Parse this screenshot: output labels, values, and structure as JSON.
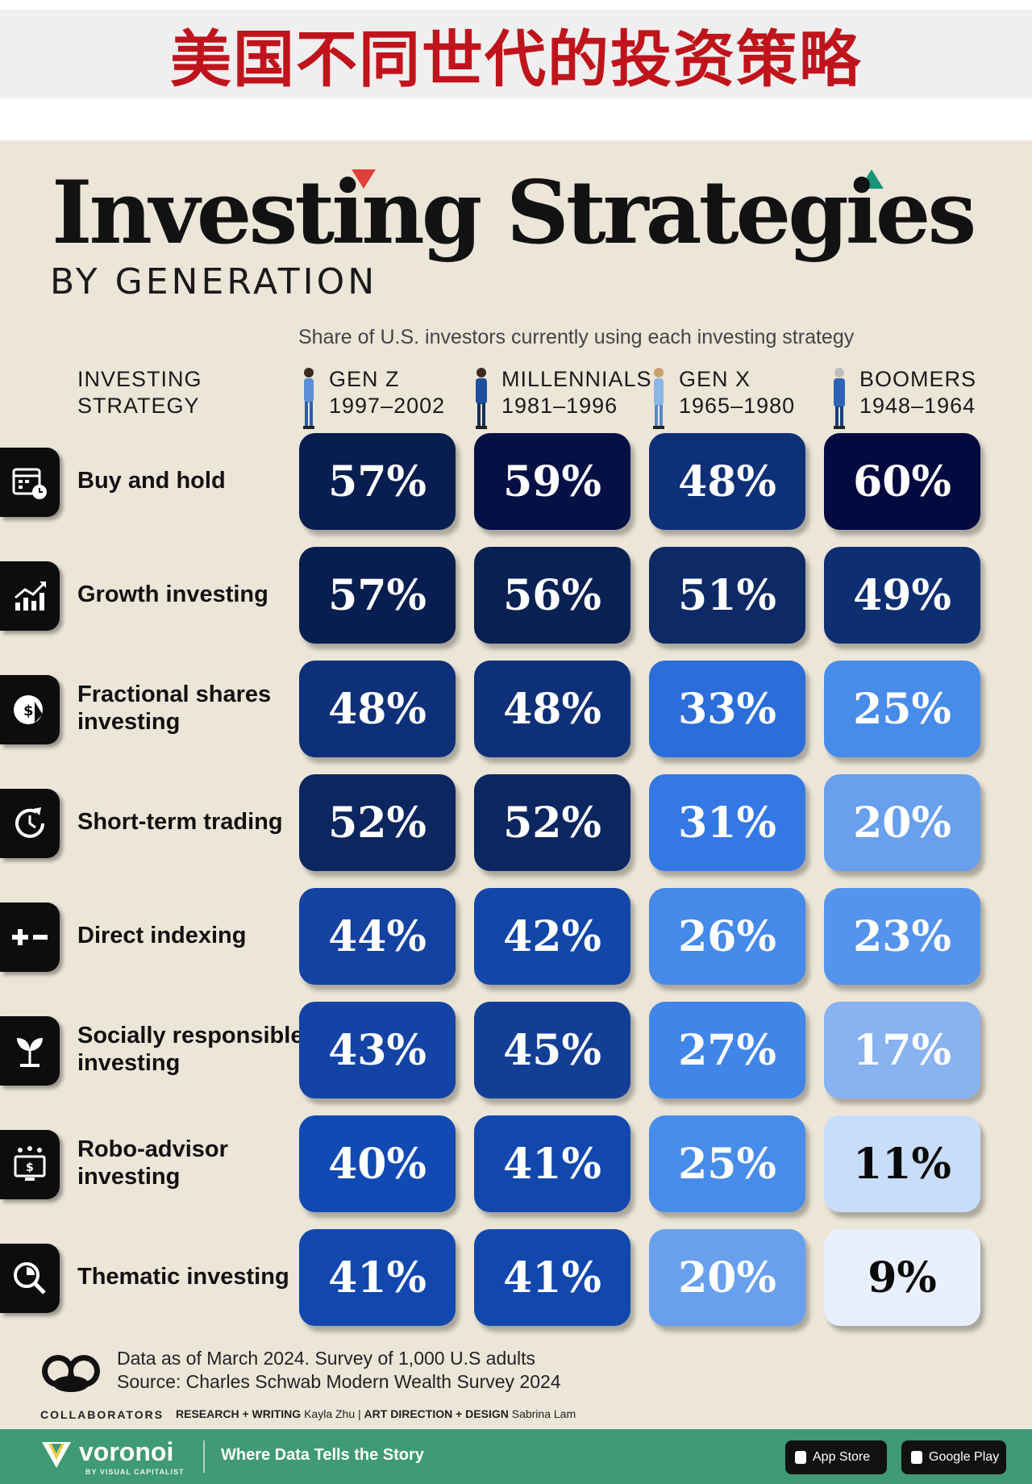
{
  "banner": {
    "text": "美国不同世代的投资策略"
  },
  "header": {
    "title": "Investing Strategies",
    "subtitle": "BY GENERATION",
    "note": "Share of U.S. investors currently using each investing strategy",
    "strategy_head_line1": "INVESTING",
    "strategy_head_line2": "STRATEGY"
  },
  "generations": [
    {
      "name": "GEN Z",
      "years": "1997–2002"
    },
    {
      "name": "MILLENNIALS",
      "years": "1981–1996"
    },
    {
      "name": "GEN X",
      "years": "1965–1980"
    },
    {
      "name": "BOOMERS",
      "years": "1948–1964"
    }
  ],
  "chart_data": {
    "type": "table",
    "title": "Investing Strategies by Generation",
    "subtitle": "Share of U.S. investors currently using each investing strategy",
    "categories": [
      "Buy and hold",
      "Growth investing",
      "Fractional shares investing",
      "Short-term trading",
      "Direct indexing",
      "Socially responsible investing",
      "Robo-advisor investing",
      "Thematic investing"
    ],
    "series": [
      {
        "name": "GEN Z",
        "values": [
          57,
          57,
          48,
          52,
          44,
          43,
          40,
          41
        ],
        "labels": [
          "57%",
          "57%",
          "48%",
          "52%",
          "44%",
          "43%",
          "40%",
          "41%"
        ]
      },
      {
        "name": "MILLENNIALS",
        "values": [
          59,
          56,
          48,
          52,
          42,
          45,
          41,
          41
        ],
        "labels": [
          "59%",
          "56%",
          "48%",
          "52%",
          "42%",
          "45%",
          "41%",
          "41%"
        ]
      },
      {
        "name": "GEN X",
        "values": [
          48,
          51,
          33,
          31,
          26,
          27,
          25,
          20
        ],
        "labels": [
          "48%",
          "51%",
          "33%",
          "31%",
          "26%",
          "27%",
          "25%",
          "20%"
        ]
      },
      {
        "name": "BOOMERS",
        "values": [
          60,
          49,
          25,
          20,
          23,
          17,
          11,
          9
        ],
        "labels": [
          "60%",
          "49%",
          "25%",
          "20%",
          "23%",
          "17%",
          "11%",
          "9%"
        ]
      }
    ],
    "unit": "%"
  },
  "rows": [
    {
      "line1": "Buy and hold",
      "line2": "",
      "icon": "calendar-clock-icon"
    },
    {
      "line1": "Growth investing",
      "line2": "",
      "icon": "growth-chart-icon"
    },
    {
      "line1": "Fractional shares",
      "line2": "investing",
      "icon": "fractional-coin-icon"
    },
    {
      "line1": "Short-term trading",
      "line2": "",
      "icon": "clock-arrow-icon"
    },
    {
      "line1": "Direct indexing",
      "line2": "",
      "icon": "plus-minus-icon"
    },
    {
      "line1": "Socially responsible",
      "line2": "investing",
      "icon": "sprout-icon"
    },
    {
      "line1": "Robo-advisor",
      "line2": "investing",
      "icon": "robo-monitor-icon"
    },
    {
      "line1": "Thematic investing",
      "line2": "",
      "icon": "magnifier-pie-icon"
    }
  ],
  "footer": {
    "note_line1": "Data as of March 2024. Survey of 1,000 U.S adults",
    "note_line2": "Source: Charles Schwab Modern Wealth Survey 2024",
    "collaborators": "COLLABORATORS",
    "research_label": "RESEARCH + WRITING",
    "research_name": "Kayla Zhu",
    "separator": "|",
    "design_label": "ART DIRECTION + DESIGN",
    "design_name": "Sabrina Lam"
  },
  "bottom_bar": {
    "brand": "voronoi",
    "brand_sub": "BY VISUAL CAPITALIST",
    "tagline": "Where Data Tells the Story",
    "app_store": "App Store",
    "google_play": "Google Play"
  }
}
